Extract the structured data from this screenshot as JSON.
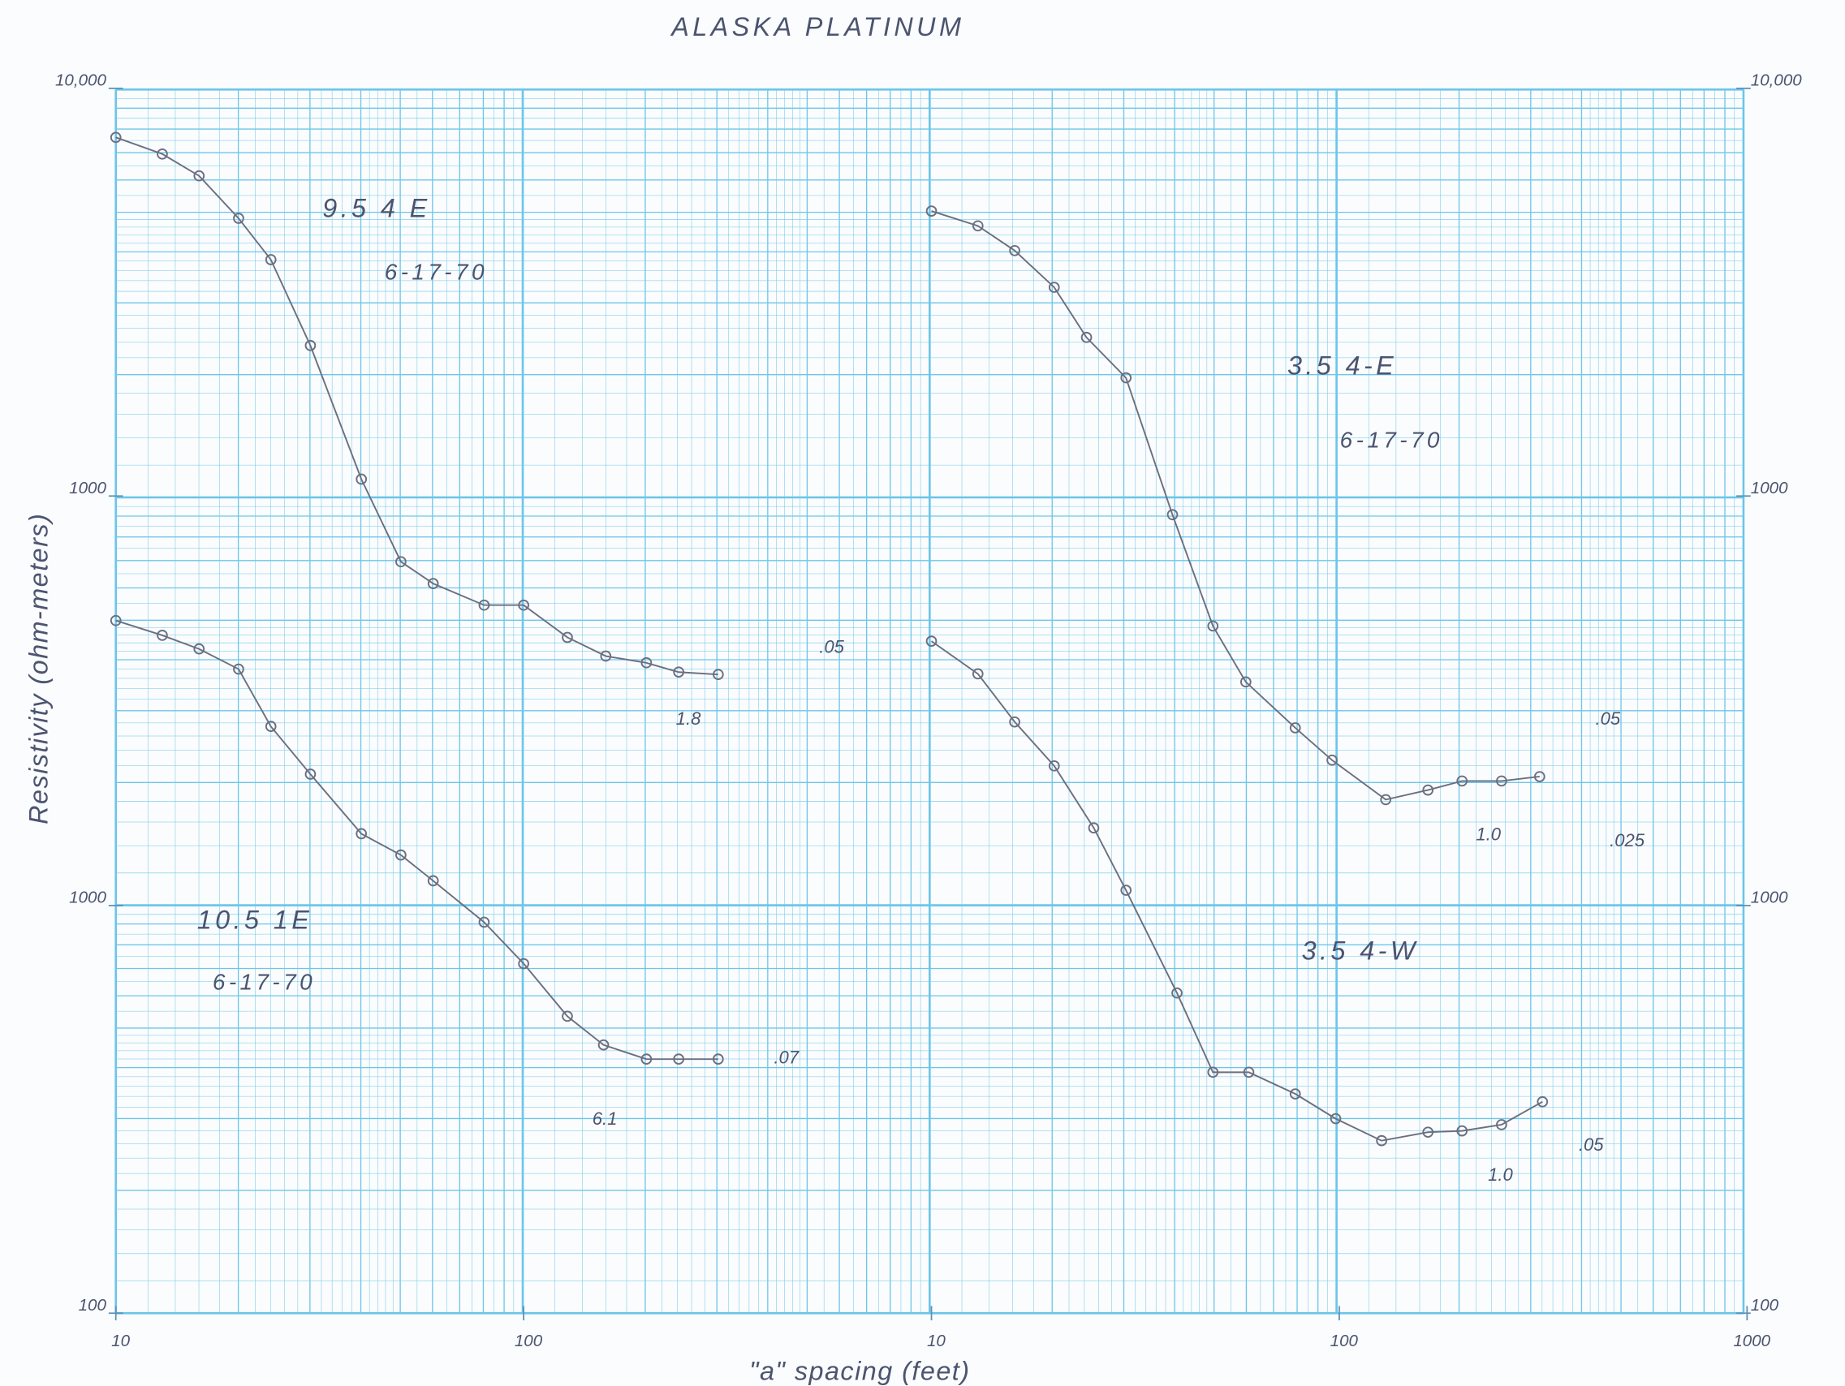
{
  "title": "ALASKA PLATINUM",
  "x_label": "\"a\" spacing (feet)",
  "y_label": "Resistivity (ohm-meters)",
  "chart_data": [
    {
      "type": "line",
      "title": "9.5 4 E",
      "subtitle": "6-17-70",
      "log_x": true,
      "log_y": true,
      "markers": true,
      "x": [
        10,
        13,
        16,
        20,
        24,
        30,
        40,
        50,
        60,
        80,
        100,
        128,
        159,
        200,
        240,
        300
      ],
      "series": [
        {
          "color": "#6b6f80",
          "values": [
            7580,
            6900,
            6100,
            4800,
            3800,
            2340,
            1100,
            690,
            610,
            540,
            540,
            450,
            405,
            390,
            370,
            365
          ]
        }
      ],
      "annotations": [
        ".05",
        "1.8"
      ],
      "xlim": [
        10,
        1000
      ],
      "ylim": [
        100,
        10000
      ],
      "xticks": [],
      "yticks": [
        {
          "value": 10000,
          "label": "10,000"
        },
        1000
      ],
      "yaxis_side": "left"
    },
    {
      "type": "line",
      "title": "10.5 1E",
      "subtitle": "6-17-70",
      "log_x": true,
      "log_y": true,
      "markers": true,
      "x": [
        10,
        13,
        16,
        20,
        24,
        30,
        40,
        50,
        60,
        80,
        100,
        128,
        157,
        200,
        240,
        300
      ],
      "series": [
        {
          "color": "#6b6f80",
          "values": [
            5000,
            4600,
            4260,
            3800,
            2750,
            2100,
            1500,
            1330,
            1150,
            910,
            720,
            535,
            455,
            420,
            420,
            420
          ]
        }
      ],
      "annotations": [
        ".07",
        "6.1"
      ],
      "xlim": [
        10,
        1000
      ],
      "ylim": [
        100,
        10000
      ],
      "xticks": [
        10,
        100
      ],
      "yticks": [
        1000,
        100
      ],
      "yaxis_side": "left"
    },
    {
      "type": "line",
      "title": "3.5 4-E",
      "subtitle": "6-17-70",
      "log_x": true,
      "log_y": true,
      "markers": true,
      "x": [
        10,
        13,
        16,
        20,
        24,
        30,
        39,
        49,
        59,
        78,
        96,
        130,
        165,
        200,
        250,
        310
      ],
      "series": [
        {
          "color": "#6b6f80",
          "values": [
            5000,
            4600,
            4000,
            3250,
            2450,
            1950,
            900,
            480,
            350,
            270,
            225,
            180,
            190,
            200,
            200,
            205
          ]
        }
      ],
      "annotations": [
        ".05",
        "1.0",
        ".025"
      ],
      "xlim": [
        10,
        1000
      ],
      "ylim": [
        100,
        10000
      ],
      "xticks": [],
      "yticks": [
        {
          "value": 10000,
          "label": "10,000"
        },
        1000
      ],
      "yaxis_side": "right"
    },
    {
      "type": "line",
      "title": "3.5 4-W",
      "log_x": true,
      "log_y": true,
      "markers": true,
      "x": [
        10,
        13,
        16,
        20,
        25,
        30,
        40,
        49,
        60,
        78,
        98,
        127,
        165,
        200,
        250,
        315
      ],
      "series": [
        {
          "color": "#6b6f80",
          "values": [
            4450,
            3700,
            2820,
            2200,
            1550,
            1090,
            610,
            390,
            390,
            345,
            300,
            265,
            278,
            280,
            290,
            330
          ]
        }
      ],
      "annotations": [
        ".05",
        "1.0"
      ],
      "xlim": [
        10,
        1000
      ],
      "ylim": [
        100,
        10000
      ],
      "xticks": [
        10,
        100,
        1000
      ],
      "yticks": [
        1000,
        100
      ],
      "yaxis_side": "right"
    }
  ]
}
